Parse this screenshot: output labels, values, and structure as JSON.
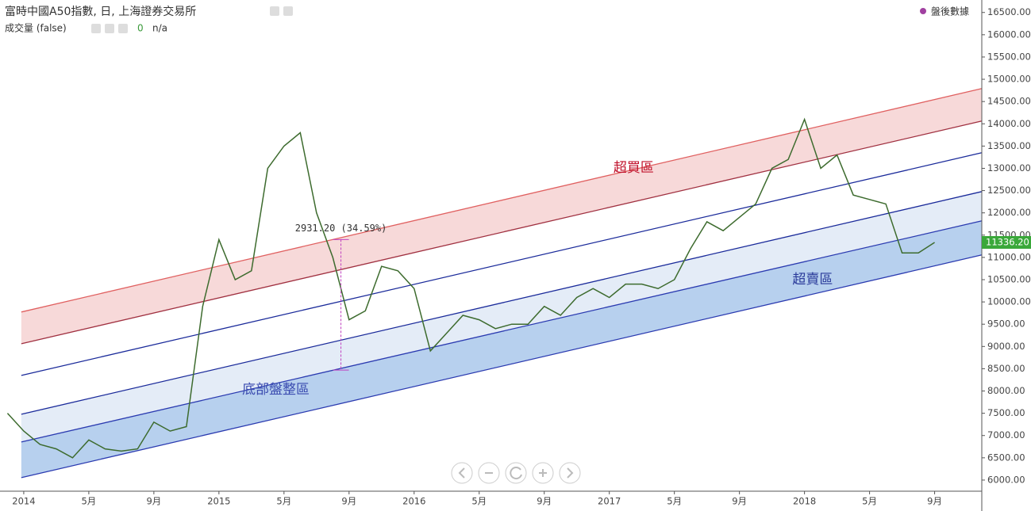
{
  "header": {
    "title": "富時中國A50指數, 日, 上海證券交易所",
    "volume_label": "成交量 (false)",
    "volume_value": 0,
    "volume_extra": "n/a",
    "after_hours": "盤後數據"
  },
  "chart_data": {
    "type": "line",
    "color": "#3d6b2e",
    "x": [
      -1,
      0,
      1,
      2,
      3,
      4,
      5,
      6,
      7,
      8,
      9,
      10,
      11,
      12,
      13,
      14,
      15,
      16,
      17,
      18,
      19,
      20,
      21,
      22,
      23,
      24,
      25,
      26,
      27,
      28,
      29,
      30,
      31,
      32,
      33,
      34,
      35,
      36,
      37,
      38,
      39,
      40,
      41,
      42,
      43,
      44,
      45,
      46,
      47,
      48,
      49,
      50,
      51,
      52,
      53,
      54,
      55,
      56
    ],
    "values": [
      7500,
      7100,
      6800,
      6700,
      6500,
      6900,
      6700,
      6650,
      6700,
      7300,
      7100,
      7200,
      9900,
      11400,
      10500,
      10700,
      13000,
      13500,
      13800,
      12000,
      11000,
      9600,
      9800,
      10800,
      10700,
      10300,
      8900,
      9300,
      9700,
      9600,
      9400,
      9500,
      9500,
      9900,
      9700,
      10100,
      10300,
      10100,
      10400,
      10400,
      10300,
      10500,
      11200,
      11800,
      11600,
      11900,
      12200,
      13000,
      13200,
      14100,
      13000,
      13300,
      12400,
      12300,
      12200,
      11100,
      11100,
      11336.2
    ],
    "xlim": [
      -1.46,
      58.9
    ],
    "ylim": [
      5750,
      16780
    ],
    "xticks": [
      {
        "value": 0,
        "label": "2014"
      },
      {
        "value": 4,
        "label": "5月"
      },
      {
        "value": 8,
        "label": "9月"
      },
      {
        "value": 12,
        "label": "2015"
      },
      {
        "value": 16,
        "label": "5月"
      },
      {
        "value": 20,
        "label": "9月"
      },
      {
        "value": 24,
        "label": "2016"
      },
      {
        "value": 28,
        "label": "5月"
      },
      {
        "value": 32,
        "label": "9月"
      },
      {
        "value": 36,
        "label": "2017"
      },
      {
        "value": 40,
        "label": "5月"
      },
      {
        "value": 44,
        "label": "9月"
      },
      {
        "value": 48,
        "label": "2018"
      },
      {
        "value": 52,
        "label": "5月"
      },
      {
        "value": 56,
        "label": "9月"
      }
    ],
    "yticks": [
      {
        "value": 6000,
        "label": "6000.00"
      },
      {
        "value": 6500,
        "label": "6500.00"
      },
      {
        "value": 7000,
        "label": "7000.00"
      },
      {
        "value": 7500,
        "label": "7500.00"
      },
      {
        "value": 8000,
        "label": "8000.00"
      },
      {
        "value": 8500,
        "label": "8500.00"
      },
      {
        "value": 9000,
        "label": "9000.00"
      },
      {
        "value": 9500,
        "label": "9500.00"
      },
      {
        "value": 10000,
        "label": "10000.00"
      },
      {
        "value": 10500,
        "label": "10500.00"
      },
      {
        "value": 11000,
        "label": "11000.00"
      },
      {
        "value": 11500,
        "label": "11500.00"
      },
      {
        "value": 12000,
        "label": "12000.00"
      },
      {
        "value": 12500,
        "label": "12500.00"
      },
      {
        "value": 13000,
        "label": "13000.00"
      },
      {
        "value": 13500,
        "label": "13500.00"
      },
      {
        "value": 14000,
        "label": "14000.00"
      },
      {
        "value": 14500,
        "label": "14500.00"
      },
      {
        "value": 15000,
        "label": "15000.00"
      },
      {
        "value": 15500,
        "label": "15500.00"
      },
      {
        "value": 16000,
        "label": "16000.00"
      },
      {
        "value": 16500,
        "label": "16500.00"
      }
    ],
    "channel_lines": [
      {
        "color": "#e06060",
        "x": [
          -0.15,
          58.9
        ],
        "y": [
          9774,
          14792
        ],
        "band_color": "#f7d9d9"
      },
      {
        "color": "#a03040",
        "x": [
          -0.15,
          58.9
        ],
        "y": [
          9062,
          14062
        ]
      },
      {
        "color": "#1a2a9a",
        "x": [
          -0.15,
          58.9
        ],
        "y": [
          8350,
          13350
        ]
      },
      {
        "color": "#1a2a9a",
        "x": [
          -0.15,
          58.9
        ],
        "y": [
          7478,
          12478
        ],
        "band_color": "#e4ecf7"
      },
      {
        "color": "#2a3ab0",
        "x": [
          -0.15,
          58.9
        ],
        "y": [
          6855,
          11820
        ],
        "band_color": "#b7d0ee"
      },
      {
        "color": "#2a3ab0",
        "x": [
          -0.15,
          58.9
        ],
        "y": [
          6055,
          11055
        ]
      }
    ],
    "annotations": [
      {
        "text": "超買區",
        "x": 37.5,
        "y": 13012,
        "color": "#c0102a"
      },
      {
        "text": "底部盤整區",
        "x": 15.5,
        "y": 8030,
        "color": "#3a4bb0"
      },
      {
        "text": "超賣區",
        "x": 48.5,
        "y": 10504,
        "color": "#2a3a9a"
      }
    ],
    "measure": {
      "label": "2931.20 (34.59%)",
      "x": 19.5,
      "from": 11401.2,
      "to": 8470,
      "color": "#c040c0"
    },
    "last_price": {
      "value": 11336.2,
      "label": "11336.20",
      "color": "#3aa83a"
    }
  }
}
